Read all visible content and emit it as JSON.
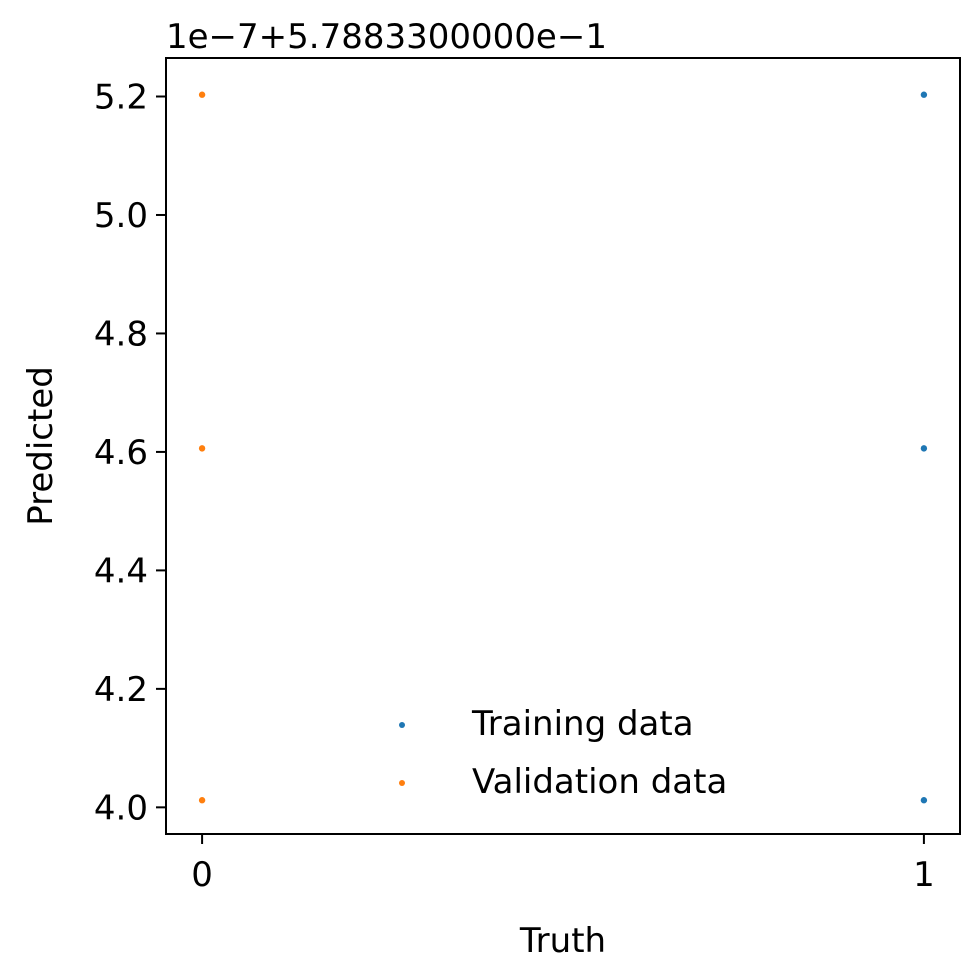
{
  "chart_data": {
    "type": "scatter",
    "xlabel": "Truth",
    "ylabel": "Predicted",
    "offset_label": "1e−7+5.7883300000e−1",
    "xlim": [
      -0.05,
      1.05
    ],
    "ylim": [
      3.955,
      5.265
    ],
    "x_ticks": [
      0,
      1
    ],
    "x_tick_labels": [
      "0",
      "1"
    ],
    "y_ticks": [
      4.0,
      4.2,
      4.4,
      4.6,
      4.8,
      5.0,
      5.2
    ],
    "y_tick_labels": [
      "4.0",
      "4.2",
      "4.4",
      "4.6",
      "4.8",
      "5.0",
      "5.2"
    ],
    "legend_position": "lower center",
    "series": [
      {
        "name": "Training data",
        "color": "#1f77b4",
        "points": [
          [
            1,
            5.203
          ],
          [
            1,
            4.606
          ],
          [
            1,
            4.012
          ]
        ]
      },
      {
        "name": "Validation data",
        "color": "#ff7f0e",
        "points": [
          [
            0,
            5.203
          ],
          [
            0,
            4.606
          ],
          [
            0,
            4.012
          ]
        ]
      }
    ]
  }
}
